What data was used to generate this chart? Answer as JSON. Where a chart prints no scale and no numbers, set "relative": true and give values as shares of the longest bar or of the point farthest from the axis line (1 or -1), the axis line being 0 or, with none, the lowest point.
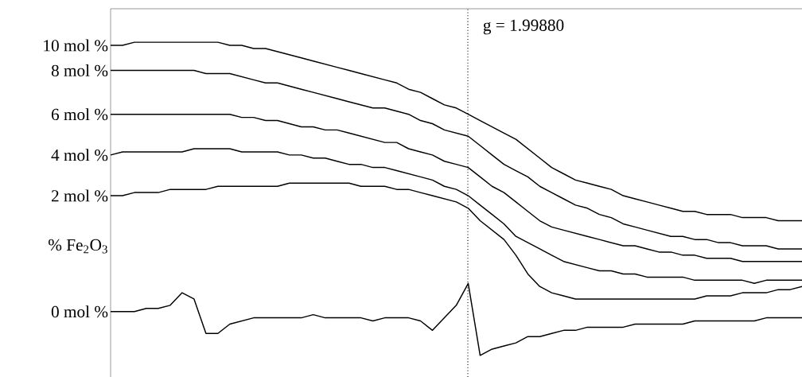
{
  "chart_data": {
    "type": "line",
    "relative": true,
    "marker": "none",
    "line_style": "solid",
    "categories": [
      null,
      null,
      null,
      null,
      null,
      null,
      null,
      null,
      null,
      null,
      null,
      null,
      null,
      null,
      null,
      null,
      null,
      null,
      null,
      null,
      null,
      null,
      null,
      null,
      null,
      null,
      null,
      null,
      null,
      null,
      null,
      null,
      null,
      null,
      null,
      null,
      null,
      null,
      null,
      null,
      null,
      null,
      null,
      null,
      null,
      null,
      null,
      null,
      null,
      null,
      null,
      null,
      null,
      null,
      null,
      null,
      null,
      null,
      null
    ],
    "series": [
      {
        "name": "10 mol %",
        "color": "#000000",
        "values": [
          0.99,
          0.99,
          1.0,
          1.0,
          1.0,
          1.0,
          1.0,
          1.0,
          1.0,
          1.0,
          0.99,
          0.99,
          0.98,
          0.98,
          0.97,
          0.96,
          0.95,
          0.94,
          0.93,
          0.92,
          0.91,
          0.9,
          0.89,
          0.88,
          0.87,
          0.85,
          0.84,
          0.82,
          0.8,
          0.79,
          0.77,
          0.75,
          0.73,
          0.71,
          0.69,
          0.66,
          0.63,
          0.6,
          0.58,
          0.56,
          0.55,
          0.54,
          0.53,
          0.51,
          0.5,
          0.49,
          0.48,
          0.47,
          0.46,
          0.46,
          0.45,
          0.45,
          0.45,
          0.44,
          0.44,
          0.44,
          0.43,
          0.43,
          0.43
        ]
      },
      {
        "name": "8 mol %",
        "color": "#000000",
        "values": [
          0.91,
          0.91,
          0.91,
          0.91,
          0.91,
          0.91,
          0.91,
          0.91,
          0.9,
          0.9,
          0.9,
          0.89,
          0.88,
          0.87,
          0.87,
          0.86,
          0.85,
          0.84,
          0.83,
          0.82,
          0.81,
          0.8,
          0.79,
          0.79,
          0.78,
          0.77,
          0.75,
          0.74,
          0.72,
          0.71,
          0.7,
          0.67,
          0.64,
          0.61,
          0.59,
          0.57,
          0.54,
          0.52,
          0.5,
          0.48,
          0.47,
          0.45,
          0.44,
          0.42,
          0.41,
          0.4,
          0.39,
          0.38,
          0.38,
          0.37,
          0.37,
          0.36,
          0.36,
          0.35,
          0.35,
          0.35,
          0.34,
          0.34,
          0.34
        ]
      },
      {
        "name": "6 mol %",
        "color": "#000000",
        "values": [
          0.77,
          0.77,
          0.77,
          0.77,
          0.77,
          0.77,
          0.77,
          0.77,
          0.77,
          0.77,
          0.77,
          0.76,
          0.76,
          0.75,
          0.75,
          0.74,
          0.73,
          0.73,
          0.72,
          0.72,
          0.71,
          0.7,
          0.69,
          0.68,
          0.68,
          0.66,
          0.65,
          0.64,
          0.62,
          0.61,
          0.6,
          0.57,
          0.54,
          0.52,
          0.49,
          0.46,
          0.43,
          0.41,
          0.4,
          0.39,
          0.38,
          0.37,
          0.36,
          0.35,
          0.35,
          0.34,
          0.33,
          0.33,
          0.32,
          0.32,
          0.31,
          0.31,
          0.31,
          0.3,
          0.3,
          0.3,
          0.3,
          0.3,
          0.3
        ]
      },
      {
        "name": "4 mol %",
        "color": "#000000",
        "values": [
          0.64,
          0.65,
          0.65,
          0.65,
          0.65,
          0.65,
          0.65,
          0.66,
          0.66,
          0.66,
          0.66,
          0.65,
          0.65,
          0.65,
          0.65,
          0.64,
          0.64,
          0.63,
          0.63,
          0.62,
          0.61,
          0.61,
          0.6,
          0.6,
          0.59,
          0.58,
          0.57,
          0.56,
          0.54,
          0.53,
          0.51,
          0.48,
          0.45,
          0.42,
          0.38,
          0.36,
          0.34,
          0.32,
          0.3,
          0.29,
          0.28,
          0.27,
          0.27,
          0.26,
          0.26,
          0.25,
          0.25,
          0.25,
          0.25,
          0.24,
          0.24,
          0.24,
          0.24,
          0.24,
          0.23,
          0.24,
          0.24,
          0.24,
          0.24
        ]
      },
      {
        "name": "2 mol %",
        "color": "#000000",
        "values": [
          0.51,
          0.51,
          0.52,
          0.52,
          0.52,
          0.53,
          0.53,
          0.53,
          0.53,
          0.54,
          0.54,
          0.54,
          0.54,
          0.54,
          0.54,
          0.55,
          0.55,
          0.55,
          0.55,
          0.55,
          0.55,
          0.54,
          0.54,
          0.54,
          0.53,
          0.53,
          0.52,
          0.51,
          0.5,
          0.49,
          0.47,
          0.43,
          0.4,
          0.37,
          0.32,
          0.26,
          0.22,
          0.2,
          0.19,
          0.18,
          0.18,
          0.18,
          0.18,
          0.18,
          0.18,
          0.18,
          0.18,
          0.18,
          0.18,
          0.18,
          0.19,
          0.19,
          0.19,
          0.2,
          0.2,
          0.2,
          0.21,
          0.21,
          0.22
        ]
      },
      {
        "name": "0 mol %",
        "color": "#000000",
        "values": [
          0.14,
          0.14,
          0.14,
          0.15,
          0.15,
          0.16,
          0.2,
          0.18,
          0.07,
          0.07,
          0.1,
          0.11,
          0.12,
          0.12,
          0.12,
          0.12,
          0.12,
          0.13,
          0.12,
          0.12,
          0.12,
          0.12,
          0.11,
          0.12,
          0.12,
          0.12,
          0.11,
          0.08,
          0.12,
          0.16,
          0.23,
          0.0,
          0.02,
          0.03,
          0.04,
          0.06,
          0.06,
          0.07,
          0.08,
          0.08,
          0.09,
          0.09,
          0.09,
          0.09,
          0.1,
          0.1,
          0.1,
          0.1,
          0.1,
          0.11,
          0.11,
          0.11,
          0.11,
          0.11,
          0.11,
          0.12,
          0.12,
          0.12,
          0.12
        ]
      }
    ],
    "annotations": [
      "% Fe$_{2}$O$_{3}$",
      "g = 1.99880"
    ]
  }
}
